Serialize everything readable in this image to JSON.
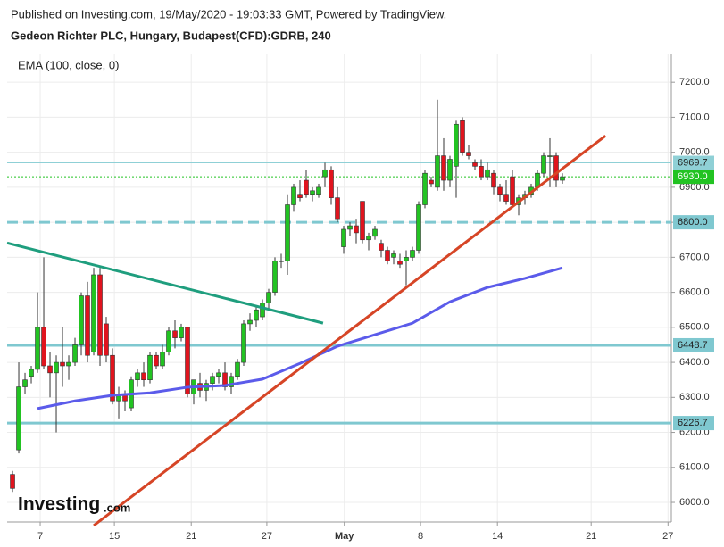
{
  "header": {
    "published": "Published on Investing.com, 19/May/2020 - 19:03:33 GMT, Powered by TradingView.",
    "symbol": "Gedeon Richter PLC, Hungary, Budapest(CFD):GDRB, 240"
  },
  "logo": {
    "main": "Investing",
    "suffix": ".com"
  },
  "chart_data": {
    "type": "candlestick",
    "xlim": [
      -0.86,
      105.43
    ],
    "ylim": [
      5944,
      7282
    ],
    "xticks": [
      {
        "value": 4.43,
        "label": "7"
      },
      {
        "value": 16.3,
        "label": "15"
      },
      {
        "value": 28.6,
        "label": "21"
      },
      {
        "value": 40.7,
        "label": "27"
      },
      {
        "value": 53.1,
        "label": "May"
      },
      {
        "value": 65.3,
        "label": "8"
      },
      {
        "value": 77.6,
        "label": "14"
      },
      {
        "value": 92.6,
        "label": "21"
      },
      {
        "value": 104.9,
        "label": "27"
      }
    ],
    "yticks": [
      {
        "value": 6000,
        "label": "6000.0"
      },
      {
        "value": 6100,
        "label": "6100.0"
      },
      {
        "value": 6200,
        "label": "6200.0"
      },
      {
        "value": 6300,
        "label": "6300.0"
      },
      {
        "value": 6400,
        "label": "6400.0"
      },
      {
        "value": 6500,
        "label": "6500.0"
      },
      {
        "value": 6600,
        "label": "6600.0"
      },
      {
        "value": 6700,
        "label": "6700.0"
      },
      {
        "value": 6800,
        "label": "6800.0"
      },
      {
        "value": 6900,
        "label": "6900.0"
      },
      {
        "value": 7000,
        "label": "7000.0"
      },
      {
        "value": 7100,
        "label": "7100.0"
      },
      {
        "value": 7200,
        "label": "7200.0"
      }
    ],
    "grid": true,
    "up_color": "#22c322",
    "down_color": "#e0141e",
    "open": [
      6080,
      6150,
      6330,
      6360,
      6380,
      6500,
      6390,
      6370,
      6400,
      6390,
      6400,
      6450,
      6590,
      6430,
      6650,
      6510,
      6420,
      6290,
      6310,
      6270,
      6350,
      6370,
      6350,
      6420,
      6390,
      6430,
      6490,
      6470,
      6500,
      6310,
      6340,
      6320,
      6340,
      6360,
      6370,
      6330,
      6360,
      6400,
      6510,
      6520,
      6530,
      6570,
      6600,
      6690,
      6690,
      6850,
      6880,
      6920,
      6880,
      6880,
      6930,
      6950,
      6870,
      6730,
      6780,
      6790,
      6860,
      6750,
      6760,
      6740,
      6720,
      6700,
      6690,
      6690,
      6700,
      6720,
      6850,
      6920,
      6900,
      6990,
      6920,
      6960,
      7090,
      7000,
      6970,
      6960,
      6930,
      6940,
      6900,
      6880,
      6930,
      6850,
      6870,
      6880,
      6900,
      6940,
      6990,
      6990,
      6920
    ],
    "high": [
      6090,
      6400,
      6370,
      6390,
      6600,
      6700,
      6430,
      6420,
      6500,
      6420,
      6470,
      6600,
      6630,
      6670,
      6670,
      6530,
      6440,
      6330,
      6320,
      6360,
      6380,
      6400,
      6430,
      6430,
      6450,
      6500,
      6520,
      6510,
      6500,
      6350,
      6370,
      6350,
      6370,
      6380,
      6400,
      6370,
      6410,
      6520,
      6540,
      6560,
      6580,
      6610,
      6700,
      6710,
      6880,
      6910,
      6920,
      6950,
      6900,
      6910,
      6970,
      6960,
      6900,
      6790,
      6800,
      6810,
      6860,
      6770,
      6790,
      6750,
      6730,
      6720,
      6710,
      6720,
      6730,
      6860,
      6950,
      6930,
      7150,
      7040,
      6990,
      7090,
      7100,
      7020,
      6980,
      6980,
      6970,
      6950,
      6910,
      6920,
      6950,
      6880,
      6890,
      6910,
      6950,
      7000,
      7040,
      7000,
      6940
    ],
    "low": [
      6030,
      6140,
      6310,
      6340,
      6370,
      6380,
      6300,
      6200,
      6330,
      6350,
      6390,
      6420,
      6400,
      6420,
      6390,
      6400,
      6280,
      6240,
      6260,
      6260,
      6330,
      6330,
      6340,
      6380,
      6380,
      6420,
      6440,
      6460,
      6300,
      6280,
      6300,
      6290,
      6320,
      6340,
      6320,
      6310,
      6350,
      6390,
      6490,
      6500,
      6520,
      6550,
      6590,
      6670,
      6650,
      6830,
      6860,
      6870,
      6860,
      6870,
      6900,
      6850,
      6800,
      6710,
      6760,
      6740,
      6740,
      6720,
      6750,
      6700,
      6680,
      6680,
      6670,
      6620,
      6690,
      6710,
      6840,
      6900,
      6890,
      6890,
      6900,
      6870,
      6990,
      6980,
      6950,
      6920,
      6920,
      6880,
      6860,
      6850,
      6840,
      6820,
      6850,
      6870,
      6890,
      6930,
      6900,
      6900,
      6910
    ],
    "close": [
      6040,
      6330,
      6350,
      6380,
      6500,
      6390,
      6370,
      6400,
      6390,
      6400,
      6450,
      6590,
      6420,
      6650,
      6420,
      6420,
      6290,
      6310,
      6290,
      6350,
      6370,
      6350,
      6420,
      6390,
      6430,
      6490,
      6470,
      6500,
      6310,
      6350,
      6320,
      6340,
      6360,
      6370,
      6330,
      6360,
      6400,
      6510,
      6520,
      6550,
      6570,
      6600,
      6690,
      6690,
      6850,
      6900,
      6870,
      6880,
      6890,
      6900,
      6950,
      6870,
      6810,
      6780,
      6790,
      6770,
      6750,
      6760,
      6780,
      6720,
      6690,
      6710,
      6680,
      6700,
      6720,
      6850,
      6940,
      6910,
      6990,
      6920,
      6980,
      7080,
      7000,
      6990,
      6960,
      6930,
      6950,
      6900,
      6880,
      6860,
      6850,
      6870,
      6880,
      6900,
      6940,
      6990,
      6990,
      6920,
      6930
    ],
    "ema": {
      "name": "EMA (100, close, 0)",
      "color": "#5b5bea",
      "x": [
        4,
        10,
        16,
        22,
        28,
        34,
        40,
        46,
        52,
        58,
        64,
        70,
        76,
        82,
        88
      ],
      "values": [
        6268,
        6290,
        6306,
        6313,
        6329,
        6334,
        6352,
        6397,
        6446,
        6479,
        6512,
        6573,
        6614,
        6640,
        6670
      ]
    },
    "trendlines": [
      {
        "color": "#1f9e7e",
        "x": [
          -0.86,
          49.7
        ],
        "values": [
          6741,
          6512
        ]
      },
      {
        "color": "#d64526",
        "x": [
          13,
          94.9
        ],
        "values": [
          5934,
          7047
        ]
      }
    ],
    "levels": [
      {
        "value": 6969.7,
        "label": "6969.7",
        "color": "#8fd0d6",
        "style": "solid",
        "width": 1,
        "text_color": "#222"
      },
      {
        "value": 6930,
        "label": "6930.0",
        "color": "#22c322",
        "style": "dotted",
        "width": 1,
        "text_color": "#fff"
      },
      {
        "value": 6800,
        "label": "6800.0",
        "color": "#7fc8d0",
        "style": "dashed",
        "width": 3,
        "text_color": "#222"
      },
      {
        "value": 6448.7,
        "label": "6448.7",
        "color": "#7fc8d0",
        "style": "solid",
        "width": 3,
        "text_color": "#222"
      },
      {
        "value": 6226.7,
        "label": "6226.7",
        "color": "#7fc8d0",
        "style": "solid",
        "width": 3,
        "text_color": "#222"
      }
    ]
  }
}
